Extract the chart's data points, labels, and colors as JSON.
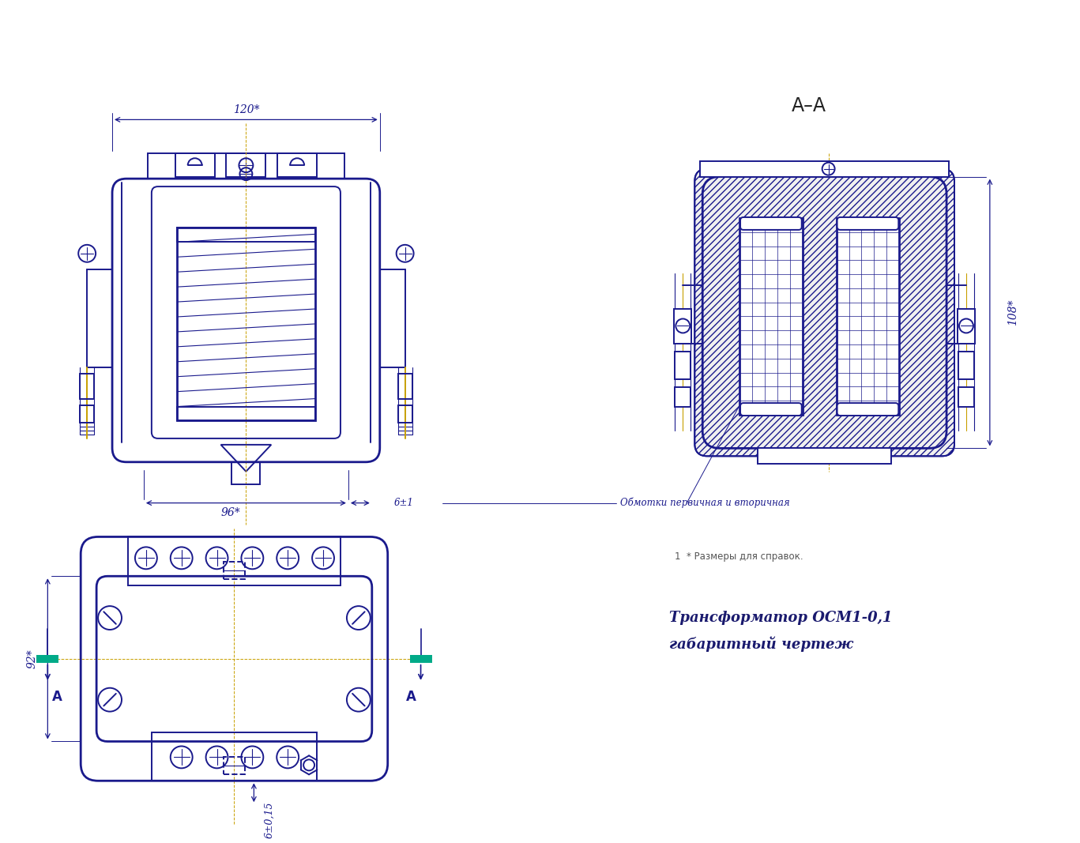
{
  "bg_color": "#ffffff",
  "line_color": "#1a1a8c",
  "dim_color": "#1a1a8c",
  "hatch_color": "#1a1a8c",
  "centerline_color": "#c8a000",
  "green_color": "#00aa88",
  "title": "Трансформатор ОСМ1-0,1\nгабаритный чертеж",
  "note": "1  * Размеры для справок.",
  "section_label": "A–A",
  "dim_120": "120*",
  "dim_96": "96*",
  "dim_108": "108*",
  "dim_92": "92*",
  "dim_6pm1": "6±1",
  "dim_6pm015": "6±0,15",
  "annotation": "Обмотки первичная и вторичная",
  "label_A": "A"
}
